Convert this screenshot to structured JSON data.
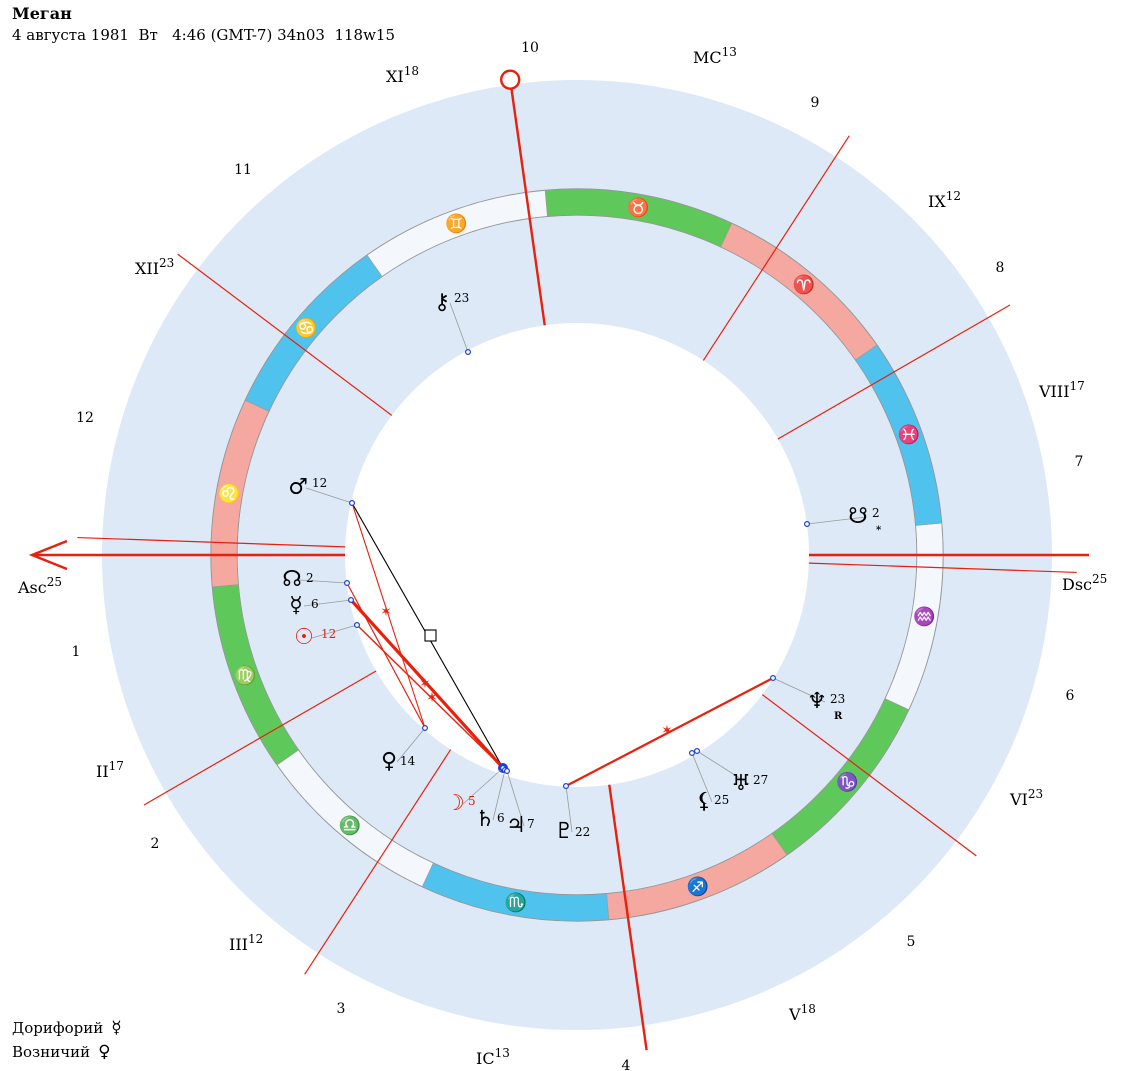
{
  "header": {
    "name": "Меган",
    "details": "4 августа 1981  Вт   4:46 (GMT-7) 34n03  118w15"
  },
  "footer": {
    "doryphory_label": "Дорифорий",
    "doryphory_glyph": "☿",
    "charioteer_label": "Возничий",
    "charioteer_glyph": "♀"
  },
  "colors": {
    "outer_ring": "#dde9f7",
    "ring_border": "#8a8a8a",
    "fire": "#f4a8a0",
    "earth": "#5fc85a",
    "air": "#f4f7fb",
    "water": "#4fc3ee",
    "axis": "#e8200c",
    "aspect_red": "#e8200c",
    "aspect_black": "#000000",
    "planet_dot": "#1a3fd8"
  },
  "icons": {
    "ascendant": "arrow-left-icon",
    "midheaven": "circle-marker-icon"
  },
  "chart": {
    "asc_label": "Asc",
    "asc_degree": "25",
    "dsc_label": "Dsc",
    "dsc_degree": "25",
    "mc_label": "MC",
    "mc_degree": "13",
    "ic_label": "IC",
    "ic_degree": "13",
    "cusps": [
      {
        "label": "II",
        "degree": "17"
      },
      {
        "label": "III",
        "degree": "12"
      },
      {
        "label": "V",
        "degree": "18"
      },
      {
        "label": "VI",
        "degree": "23"
      },
      {
        "label": "VIII",
        "degree": "17"
      },
      {
        "label": "IX",
        "degree": "12"
      },
      {
        "label": "XI",
        "degree": "18"
      },
      {
        "label": "XII",
        "degree": "23"
      }
    ],
    "house_numbers": [
      "1",
      "2",
      "3",
      "4",
      "5",
      "6",
      "7",
      "8",
      "9",
      "10",
      "11",
      "12"
    ],
    "signs": [
      {
        "glyph": "♈",
        "name": "aries"
      },
      {
        "glyph": "♉",
        "name": "taurus"
      },
      {
        "glyph": "♊",
        "name": "gemini"
      },
      {
        "glyph": "♋",
        "name": "cancer"
      },
      {
        "glyph": "♌",
        "name": "leo"
      },
      {
        "glyph": "♍",
        "name": "virgo"
      },
      {
        "glyph": "♎",
        "name": "libra"
      },
      {
        "glyph": "♏",
        "name": "scorpio"
      },
      {
        "glyph": "♐",
        "name": "sagittarius"
      },
      {
        "glyph": "♑",
        "name": "capricorn"
      },
      {
        "glyph": "♒",
        "name": "aquarius"
      },
      {
        "glyph": "♓",
        "name": "pisces"
      }
    ],
    "planets": [
      {
        "name": "mars",
        "glyph": "♂",
        "degree": "12",
        "suffix": ""
      },
      {
        "name": "north-node",
        "glyph": "☊",
        "degree": "2",
        "suffix": ""
      },
      {
        "name": "mercury",
        "glyph": "☿",
        "degree": "6",
        "suffix": ""
      },
      {
        "name": "sun",
        "glyph": "☉",
        "degree": "12",
        "suffix": ""
      },
      {
        "name": "venus",
        "glyph": "♀",
        "degree": "14",
        "suffix": ""
      },
      {
        "name": "moon",
        "glyph": "☽",
        "degree": "5",
        "suffix": ""
      },
      {
        "name": "saturn",
        "glyph": "♄",
        "degree": "6",
        "suffix": ""
      },
      {
        "name": "jupiter",
        "glyph": "♃",
        "degree": "7",
        "suffix": ""
      },
      {
        "name": "pluto",
        "glyph": "♇",
        "degree": "22",
        "suffix": ""
      },
      {
        "name": "lilith",
        "glyph": "⚸",
        "degree": "25",
        "suffix": ""
      },
      {
        "name": "uranus",
        "glyph": "♅",
        "degree": "27",
        "suffix": ""
      },
      {
        "name": "neptune",
        "glyph": "♆",
        "degree": "23",
        "suffix": "R"
      },
      {
        "name": "south-node",
        "glyph": "☋",
        "degree": "2",
        "suffix": "*"
      },
      {
        "name": "chiron",
        "glyph": "⚷",
        "degree": "23",
        "suffix": ""
      }
    ]
  }
}
